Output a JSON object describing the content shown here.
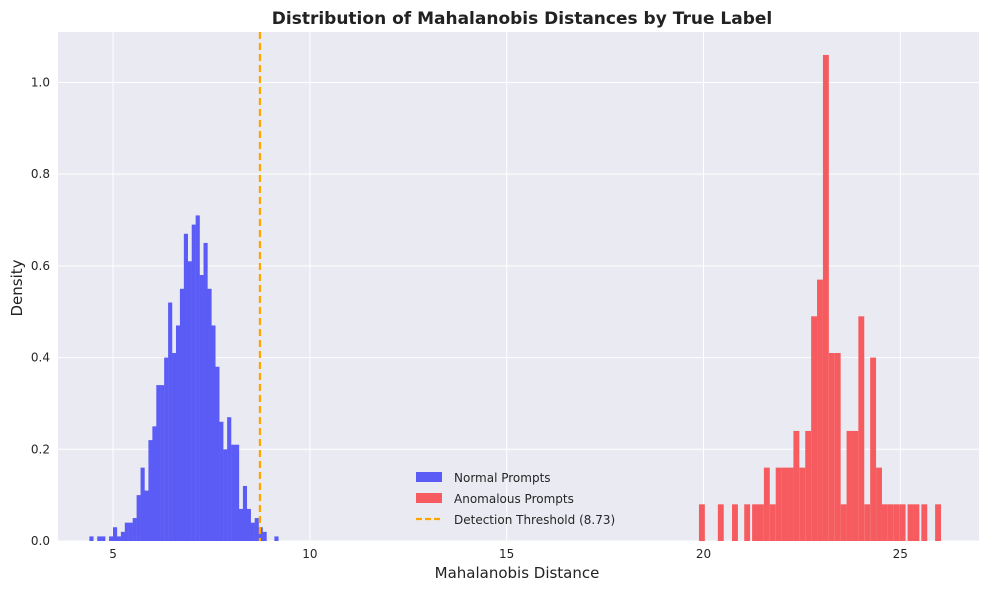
{
  "chart_data": {
    "type": "bar",
    "title": "Distribution of Mahalanobis Distances by True Label",
    "xlabel": "Mahalanobis Distance",
    "ylabel": "Density",
    "xlim": [
      3.6,
      27.0
    ],
    "ylim": [
      0.0,
      1.11
    ],
    "xticks": [
      5,
      10,
      15,
      20,
      25
    ],
    "yticks": [
      0.0,
      0.2,
      0.4,
      0.6,
      0.8,
      1.0
    ],
    "grid": true,
    "legend_position": "lower center",
    "threshold": {
      "name": "Detection Threshold (8.73)",
      "value": 8.73,
      "color": "#FFA500",
      "style": "dashed"
    },
    "series": [
      {
        "name": "Normal Prompts",
        "color": "#5b5bf5",
        "bin_width": 0.105,
        "bins": [
          [
            4.45,
            0.01
          ],
          [
            4.65,
            0.01
          ],
          [
            4.75,
            0.01
          ],
          [
            4.95,
            0.01
          ],
          [
            5.05,
            0.03
          ],
          [
            5.15,
            0.01
          ],
          [
            5.25,
            0.02
          ],
          [
            5.35,
            0.04
          ],
          [
            5.45,
            0.04
          ],
          [
            5.55,
            0.05
          ],
          [
            5.65,
            0.1
          ],
          [
            5.75,
            0.16
          ],
          [
            5.85,
            0.11
          ],
          [
            5.95,
            0.22
          ],
          [
            6.05,
            0.25
          ],
          [
            6.15,
            0.34
          ],
          [
            6.25,
            0.34
          ],
          [
            6.35,
            0.4
          ],
          [
            6.45,
            0.52
          ],
          [
            6.55,
            0.41
          ],
          [
            6.65,
            0.47
          ],
          [
            6.75,
            0.55
          ],
          [
            6.85,
            0.67
          ],
          [
            6.95,
            0.61
          ],
          [
            7.05,
            0.69
          ],
          [
            7.15,
            0.71
          ],
          [
            7.25,
            0.58
          ],
          [
            7.35,
            0.65
          ],
          [
            7.45,
            0.55
          ],
          [
            7.55,
            0.47
          ],
          [
            7.65,
            0.38
          ],
          [
            7.75,
            0.26
          ],
          [
            7.85,
            0.2
          ],
          [
            7.95,
            0.27
          ],
          [
            8.05,
            0.21
          ],
          [
            8.15,
            0.21
          ],
          [
            8.25,
            0.07
          ],
          [
            8.35,
            0.12
          ],
          [
            8.45,
            0.07
          ],
          [
            8.55,
            0.04
          ],
          [
            8.65,
            0.05
          ],
          [
            8.75,
            0.03
          ],
          [
            8.85,
            0.02
          ],
          [
            9.15,
            0.01
          ]
        ]
      },
      {
        "name": "Anomalous Prompts",
        "color": "#f65c5f",
        "bin_width": 0.15,
        "bins": [
          [
            19.96,
            0.08
          ],
          [
            20.44,
            0.08
          ],
          [
            20.8,
            0.08
          ],
          [
            21.11,
            0.08
          ],
          [
            21.31,
            0.08
          ],
          [
            21.46,
            0.08
          ],
          [
            21.61,
            0.16
          ],
          [
            21.76,
            0.08
          ],
          [
            21.91,
            0.16
          ],
          [
            22.06,
            0.16
          ],
          [
            22.21,
            0.16
          ],
          [
            22.36,
            0.24
          ],
          [
            22.51,
            0.16
          ],
          [
            22.66,
            0.24
          ],
          [
            22.81,
            0.49
          ],
          [
            22.96,
            0.57
          ],
          [
            23.11,
            1.06
          ],
          [
            23.26,
            0.41
          ],
          [
            23.41,
            0.41
          ],
          [
            23.56,
            0.08
          ],
          [
            23.71,
            0.24
          ],
          [
            23.86,
            0.24
          ],
          [
            24.01,
            0.49
          ],
          [
            24.16,
            0.08
          ],
          [
            24.31,
            0.4
          ],
          [
            24.46,
            0.16
          ],
          [
            24.61,
            0.08
          ],
          [
            24.76,
            0.08
          ],
          [
            24.91,
            0.08
          ],
          [
            25.06,
            0.08
          ],
          [
            25.26,
            0.08
          ],
          [
            25.41,
            0.08
          ],
          [
            25.61,
            0.08
          ],
          [
            25.96,
            0.08
          ]
        ]
      }
    ]
  }
}
